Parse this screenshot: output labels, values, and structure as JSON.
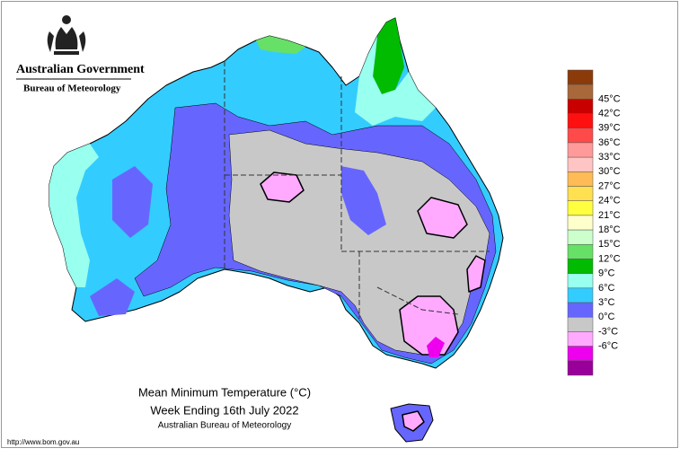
{
  "header": {
    "org": "Australian Government",
    "agency": "Bureau of Meteorology"
  },
  "title": {
    "line1": "Mean Minimum Temperature (°C)",
    "line2": "Week Ending 16th July 2022",
    "line3": "Australian Bureau of Meteorology"
  },
  "url": "http://www.bom.gov.au",
  "legend": {
    "colors": [
      "#8b3a0a",
      "#a8683a",
      "#c80000",
      "#ff1010",
      "#ff4a4a",
      "#ff9a9a",
      "#ffc4c4",
      "#ffbb55",
      "#ffe050",
      "#ffff40",
      "#ffffcc",
      "#ccffcc",
      "#66e066",
      "#00bb00",
      "#99ffee",
      "#33ccff",
      "#6666ff",
      "#c8c8c8",
      "#ffaaff",
      "#ee00ee",
      "#990099"
    ],
    "labels": [
      "45°C",
      "42°C",
      "39°C",
      "36°C",
      "33°C",
      "30°C",
      "27°C",
      "24°C",
      "21°C",
      "18°C",
      "15°C",
      "12°C",
      "9°C",
      "6°C",
      "3°C",
      "0°C",
      "-3°C",
      "-6°C"
    ]
  }
}
